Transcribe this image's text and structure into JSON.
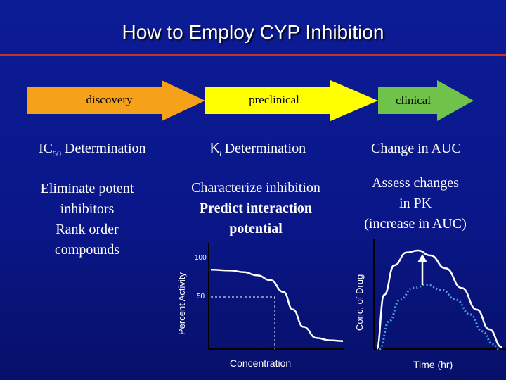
{
  "title": "How to Employ CYP Inhibition",
  "phases": [
    {
      "label": "discovery",
      "color": "#f5a11a"
    },
    {
      "label": "preclinical",
      "color": "#ffff00"
    },
    {
      "label": "clinical",
      "color": "#6fc34a"
    }
  ],
  "columns": {
    "discovery": {
      "heading_main": "IC",
      "heading_sub": "50",
      "heading_rest": " Determination",
      "lines": [
        "Eliminate potent",
        "inhibitors",
        "Rank order",
        "compounds"
      ]
    },
    "preclinical": {
      "heading_main": "K",
      "heading_sub": "i",
      "heading_rest": " Determination",
      "lines": [
        "Characterize inhibition",
        "Predict interaction",
        "potential"
      ]
    },
    "clinical": {
      "heading": "Change in AUC",
      "lines": [
        "Assess changes",
        "in PK",
        "(increase in AUC)"
      ]
    }
  },
  "colors": {
    "background": "#0a178a",
    "rule": "#c8321e",
    "curve_dotted": "#4aa0e0"
  },
  "chart_data": [
    {
      "type": "line",
      "ylabel": "Percent Activity",
      "xlabel": "Concentration",
      "ytick_labels": [
        "100",
        "50"
      ],
      "series": [
        {
          "x": [
            0.0,
            0.15,
            0.25,
            0.35,
            0.45,
            0.55,
            0.62,
            0.7,
            0.8,
            0.9,
            1.0
          ],
          "y": [
            100,
            99,
            97,
            93,
            87,
            72,
            50,
            28,
            14,
            11,
            10
          ]
        }
      ],
      "reference": {
        "y": 50,
        "x": 0.49
      }
    },
    {
      "type": "line",
      "ylabel": "Conc. of Drug",
      "xlabel": "Time (hr)",
      "series": [
        {
          "style": "solid",
          "color": "#ffffff",
          "x": [
            0.0,
            0.06,
            0.14,
            0.24,
            0.33,
            0.43,
            0.55,
            0.68,
            0.8,
            0.9,
            1.0
          ],
          "y": [
            0.0,
            0.55,
            0.85,
            0.98,
            1.0,
            0.95,
            0.82,
            0.62,
            0.4,
            0.2,
            0.02
          ]
        },
        {
          "style": "dotted",
          "color": "#4aa0e0",
          "x": [
            0.0,
            0.08,
            0.17,
            0.28,
            0.4,
            0.52,
            0.64,
            0.76,
            0.86,
            0.95,
            1.0
          ],
          "y": [
            0.0,
            0.28,
            0.5,
            0.62,
            0.65,
            0.6,
            0.5,
            0.35,
            0.18,
            0.05,
            0.0
          ]
        }
      ],
      "annotation": "up-arrow"
    }
  ]
}
